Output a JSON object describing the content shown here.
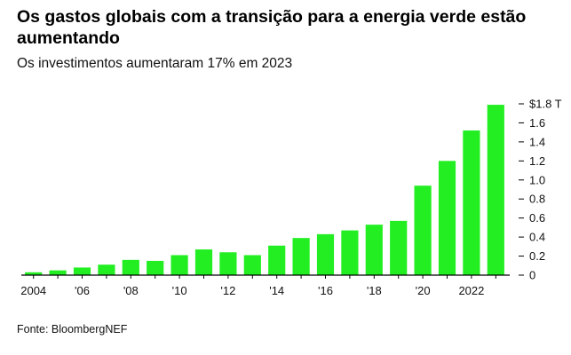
{
  "header": {
    "title": "Os gastos globais com a transição para a energia verde estão aumentando",
    "subtitle": "Os investimentos aumentaram 17% em 2023"
  },
  "footer": {
    "source": "Fonte: BloombergNEF"
  },
  "colors": {
    "bar": "#22ee22",
    "axis": "#000000",
    "text": "#111111"
  },
  "chart_data": {
    "type": "bar",
    "title": "Os gastos globais com a transição para a energia verde estão aumentando",
    "subtitle": "Os investimentos aumentaram 17% em 2023",
    "categories": [
      "2004",
      "2005",
      "2006",
      "2007",
      "2008",
      "2009",
      "2010",
      "2011",
      "2012",
      "2013",
      "2014",
      "2015",
      "2016",
      "2017",
      "2018",
      "2019",
      "2020",
      "2021",
      "2022",
      "2023"
    ],
    "values": [
      0.03,
      0.05,
      0.08,
      0.11,
      0.16,
      0.15,
      0.21,
      0.27,
      0.24,
      0.21,
      0.31,
      0.39,
      0.43,
      0.47,
      0.53,
      0.57,
      0.94,
      1.2,
      1.52,
      1.79
    ],
    "x_tick_labels": [
      {
        "category": "2004",
        "label": "2004"
      },
      {
        "category": "2006",
        "label": "'06"
      },
      {
        "category": "2008",
        "label": "'08"
      },
      {
        "category": "2010",
        "label": "'10"
      },
      {
        "category": "2012",
        "label": "'12"
      },
      {
        "category": "2014",
        "label": "'14"
      },
      {
        "category": "2016",
        "label": "'16"
      },
      {
        "category": "2018",
        "label": "'18"
      },
      {
        "category": "2020",
        "label": "'20"
      },
      {
        "category": "2022",
        "label": "2022"
      }
    ],
    "y_ticks": [
      {
        "value": 0,
        "label": "0"
      },
      {
        "value": 0.2,
        "label": "0.2"
      },
      {
        "value": 0.4,
        "label": "0.4"
      },
      {
        "value": 0.6,
        "label": "0.6"
      },
      {
        "value": 0.8,
        "label": "0.8"
      },
      {
        "value": 1.0,
        "label": "1.0"
      },
      {
        "value": 1.2,
        "label": "1.2"
      },
      {
        "value": 1.4,
        "label": "1.4"
      },
      {
        "value": 1.6,
        "label": "1.6"
      },
      {
        "value": 1.8,
        "label": "$1.8 T"
      }
    ],
    "ylim": [
      0,
      1.8
    ],
    "y_axis_side": "right",
    "grid": false,
    "legend": "none"
  }
}
